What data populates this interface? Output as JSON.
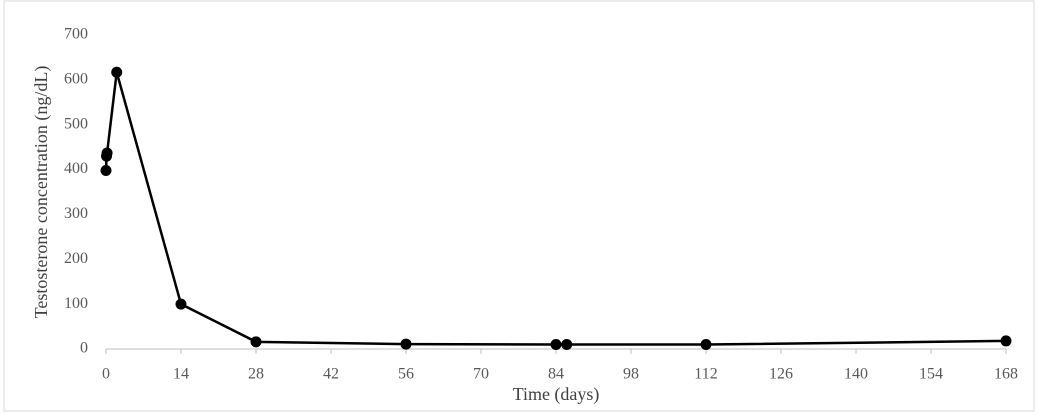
{
  "chart_data": {
    "type": "line",
    "x_label": "Time (days)",
    "y_label": "Testosterone concentration (ng/dL)",
    "x": [
      0,
      0.1,
      0.2,
      2,
      14,
      28,
      56,
      84,
      86,
      112,
      168
    ],
    "series": [
      {
        "color": "#000000",
        "values": [
          398,
          430,
          437,
          617,
          100,
          16,
          11,
          10,
          10,
          10,
          18
        ]
      }
    ],
    "xlim": [
      0,
      168
    ],
    "xticks": [
      0,
      14,
      28,
      42,
      56,
      70,
      84,
      98,
      112,
      126,
      140,
      154,
      168
    ],
    "ylim": [
      0,
      700
    ],
    "yticks": [
      0,
      100,
      200,
      300,
      400,
      500,
      600,
      700
    ],
    "grid": false
  }
}
